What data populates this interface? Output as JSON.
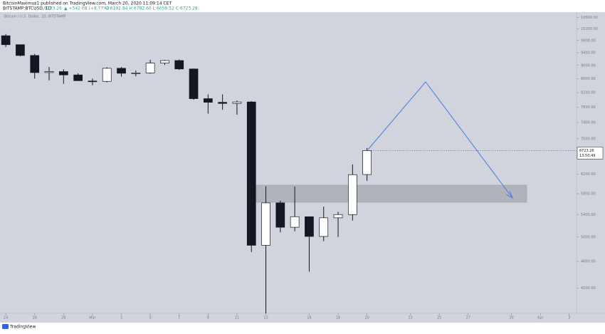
{
  "header": {
    "author_line": "BitcoinMaximus1 published on TradingView.com, March 20, 2020 11:09:14 CET",
    "symbol": "BITSTAMP:BTCUSD, 1D",
    "price": "6723.26",
    "change": "▲ +542.08 (+8.77%)",
    "ohlc": "O:6192.94 H:6782.60 L:6059.52 C:6723.28"
  },
  "chart_data": {
    "type": "candlestick",
    "title": "Bitcoin / U.S. Dollar, 1D, BITSTAMP",
    "log_scale": true,
    "up_color": "#ffffff",
    "down_color": "#131722",
    "x": [
      0,
      1,
      2,
      3,
      4,
      5,
      6,
      7,
      8,
      9,
      10,
      11,
      12,
      13,
      14,
      15,
      16,
      17,
      18,
      19,
      20,
      21,
      22,
      23,
      24,
      25
    ],
    "open": [
      9960,
      9660,
      9310,
      8780,
      8810,
      8710,
      8530,
      8520,
      8910,
      8755,
      8770,
      9070,
      9150,
      8890,
      8030,
      7930,
      7900,
      7940,
      4860,
      5620,
      5170,
      5360,
      5010,
      5340,
      5400,
      6192.94
    ],
    "high": [
      10020,
      9660,
      9360,
      8950,
      8880,
      8760,
      8600,
      8940,
      8950,
      8840,
      9170,
      9170,
      9180,
      8900,
      8150,
      8150,
      7980,
      7960,
      5950,
      5660,
      5940,
      5360,
      5550,
      5450,
      6410,
      6782.6
    ],
    "low": [
      9580,
      9280,
      8600,
      8550,
      8450,
      8530,
      8410,
      8490,
      8660,
      8670,
      8750,
      9010,
      8860,
      8000,
      7630,
      7730,
      7600,
      4750,
      3850,
      5080,
      5100,
      4440,
      4930,
      5000,
      5290,
      6059.52
    ],
    "close": [
      9660,
      9310,
      8780,
      8810,
      8710,
      8540,
      8520,
      8910,
      8760,
      8770,
      9070,
      9150,
      8890,
      8030,
      7930,
      7900,
      7940,
      4860,
      5620,
      5170,
      5360,
      5010,
      5340,
      5400,
      6190,
      6723.28
    ],
    "xlim": [
      -0.4,
      39.5
    ],
    "ylim": [
      3850,
      10800
    ],
    "xticks": [
      {
        "value": 0,
        "label": "24"
      },
      {
        "value": 2,
        "label": "26"
      },
      {
        "value": 4,
        "label": "28"
      },
      {
        "value": 6,
        "label": "Mar"
      },
      {
        "value": 8,
        "label": "3"
      },
      {
        "value": 10,
        "label": "5"
      },
      {
        "value": 12,
        "label": "7"
      },
      {
        "value": 14,
        "label": "9"
      },
      {
        "value": 16,
        "label": "11"
      },
      {
        "value": 18,
        "label": "13"
      },
      {
        "value": 21,
        "label": "16"
      },
      {
        "value": 23,
        "label": "18"
      },
      {
        "value": 25,
        "label": "20"
      },
      {
        "value": 28,
        "label": "23"
      },
      {
        "value": 30,
        "label": "25"
      },
      {
        "value": 32,
        "label": "27"
      },
      {
        "value": 35,
        "label": "30"
      },
      {
        "value": 37,
        "label": "Apr"
      },
      {
        "value": 39,
        "label": "3"
      }
    ],
    "yticks": [
      {
        "value": 10600,
        "label": "10600.00"
      },
      {
        "value": 10200,
        "label": "10200.00"
      },
      {
        "value": 9800,
        "label": "9800.00"
      },
      {
        "value": 9400,
        "label": "9400.00"
      },
      {
        "value": 9000,
        "label": "9000.00"
      },
      {
        "value": 8600,
        "label": "8600.00"
      },
      {
        "value": 8200,
        "label": "8200.00"
      },
      {
        "value": 7800,
        "label": "7800.00"
      },
      {
        "value": 7400,
        "label": "7400.00"
      },
      {
        "value": 7000,
        "label": "7000.00"
      },
      {
        "value": 6600,
        "label": "6600.00"
      },
      {
        "value": 6200,
        "label": "6200.00"
      },
      {
        "value": 5800,
        "label": "5800.00"
      },
      {
        "value": 5400,
        "label": "5400.00"
      },
      {
        "value": 5000,
        "label": "5000.00"
      },
      {
        "value": 4600,
        "label": "4600.00"
      },
      {
        "value": 4200,
        "label": "4200.00"
      }
    ],
    "last_price_label": "6723.26",
    "countdown": "13:50:49"
  },
  "footer": {
    "brand": "TradingView"
  }
}
